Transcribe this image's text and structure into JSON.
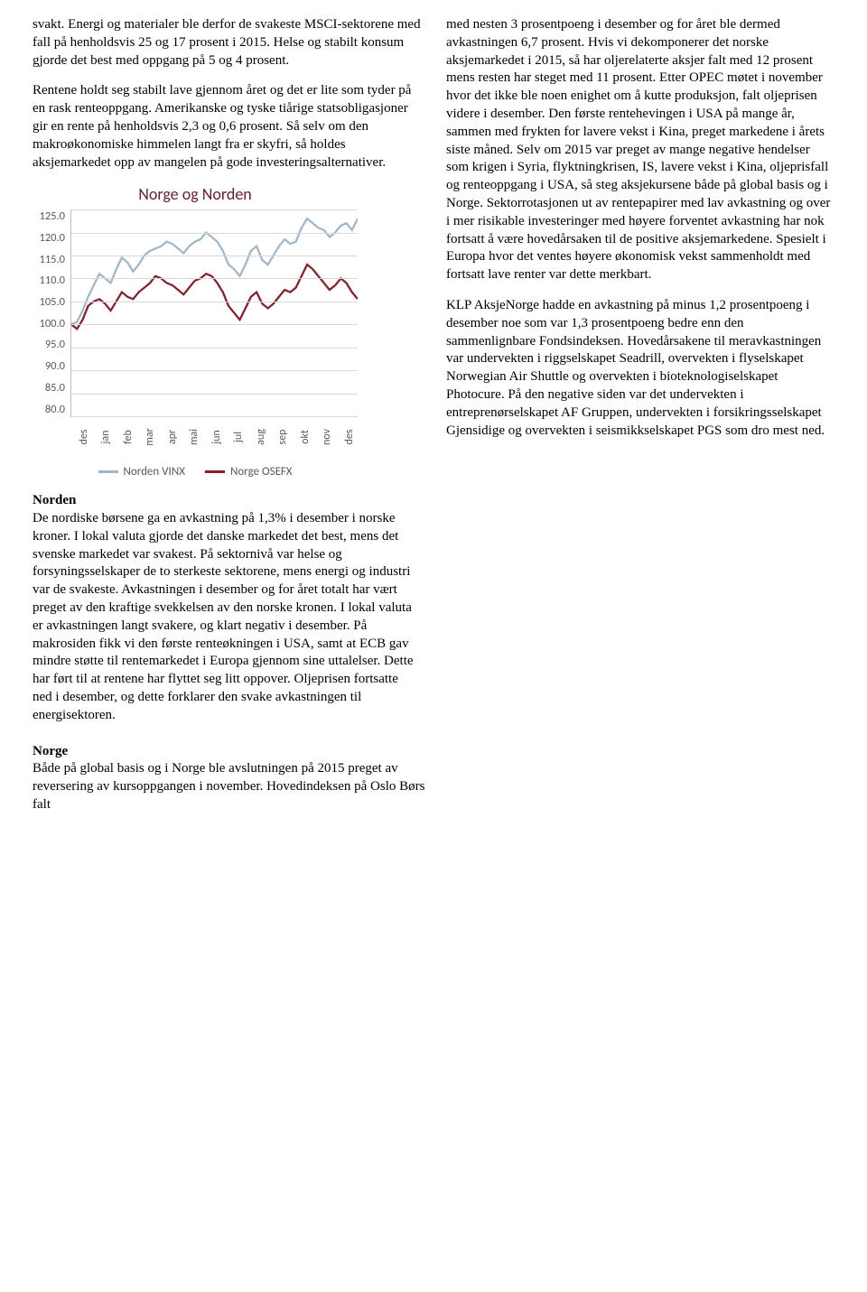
{
  "left": {
    "para1": "svakt. Energi og materialer ble derfor de svakeste MSCI-sektorene med fall på henholdsvis 25 og 17 prosent i 2015. Helse og stabilt konsum gjorde det best med oppgang på 5 og 4 prosent.",
    "para2": "Rentene holdt seg stabilt lave gjennom året og det er lite som tyder på en rask renteoppgang. Amerikanske og tyske tiårige statsobligasjoner gir en rente på henholdsvis 2,3 og 0,6 prosent. Så selv om den makroøkonomiske himmelen langt fra er skyfri, så holdes aksjemarkedet opp av mangelen på gode investeringsalternativer.",
    "norden_title": "Norden",
    "norden_body": "De nordiske børsene ga en avkastning på 1,3% i desember i norske kroner. I lokal valuta gjorde det danske markedet det best, mens det svenske markedet var svakest. På sektornivå var helse og forsyningsselskaper de to sterkeste sektorene, mens energi og industri var de svakeste. Avkastningen i desember og for året totalt har vært preget av den kraftige svekkelsen av den norske kronen. I lokal valuta er avkastningen langt svakere, og klart negativ i desember. På makrosiden fikk vi den første renteøkningen i USA, samt at ECB gav mindre støtte til rentemarkedet i Europa gjennom sine uttalelser. Dette har ført til at rentene har flyttet seg litt oppover. Oljeprisen fortsatte ned i desember, og dette forklarer den svake avkastningen til energisektoren."
  },
  "right": {
    "para1": "med nesten 3 prosentpoeng i desember og for året ble dermed avkastningen 6,7 prosent. Hvis vi dekomponerer det norske aksjemarkedet i 2015, så har oljerelaterte aksjer falt med 12 prosent mens resten har steget med 11 prosent. Etter OPEC møtet i november hvor det ikke ble noen enighet om å kutte produksjon, falt oljeprisen videre i desember. Den første rentehevingen i USA på mange år, sammen med frykten for lavere vekst i Kina, preget markedene i årets siste måned. Selv om 2015 var preget av mange negative hendelser som krigen i Syria, flyktningkrisen, IS, lavere vekst i Kina, oljeprisfall og renteoppgang i USA, så steg aksjekursene både på global basis og i Norge. Sektorrotasjonen ut av rentepapirer med lav avkastning og over i mer risikable investeringer med høyere forventet avkastning har nok fortsatt å være hovedårsaken til de positive aksjemarkedene. Spesielt i Europa hvor det ventes høyere økonomisk vekst sammenholdt med fortsatt lave renter var dette merkbart.",
    "para2": "KLP AksjeNorge hadde en avkastning på minus 1,2 prosentpoeng i desember noe som var 1,3 prosentpoeng bedre enn den sammenlignbare Fondsindeksen. Hovedårsakene til meravkastningen var undervekten i riggselskapet Seadrill, overvekten i flyselskapet Norwegian Air Shuttle og overvekten i bioteknologiselskapet Photocure. På den negative siden var det undervekten i entreprenørselskapet AF Gruppen, undervekten i forsikringsselskapet Gjensidige og overvekten i seismikkselskapet PGS som dro mest ned."
  },
  "bottom": {
    "norge_title": "Norge",
    "norge_body": "Både på global basis og i Norge ble avslutningen på 2015 preget av reversering av kursoppgangen i november. Hovedindeksen på Oslo Børs falt"
  },
  "chart": {
    "title": "Norge og Norden",
    "y_ticks": [
      "125.0",
      "120.0",
      "115.0",
      "110.0",
      "105.0",
      "100.0",
      "95.0",
      "90.0",
      "85.0",
      "80.0"
    ],
    "ymin": 80,
    "ymax": 125,
    "x_labels": [
      "des",
      "jan",
      "feb",
      "mar",
      "apr",
      "mai",
      "jun",
      "jul",
      "aug",
      "sep",
      "okt",
      "nov",
      "des"
    ],
    "series": {
      "norden": {
        "label": "Norden VINX",
        "color": "#9fb8c9",
        "values": [
          100,
          100.5,
          103,
          106,
          108.5,
          111,
          110,
          109,
          112,
          114.5,
          113.5,
          111.5,
          113,
          115,
          116,
          116.5,
          117,
          118,
          117.5,
          116.5,
          115.5,
          117,
          118,
          118.5,
          120,
          119,
          118,
          116,
          113,
          112,
          110.5,
          113,
          116,
          117,
          114,
          113,
          115,
          117,
          118.5,
          117.5,
          118,
          121,
          123,
          122,
          121,
          120.5,
          119,
          120,
          121.5,
          122,
          120.5,
          123
        ]
      },
      "norge": {
        "label": "Norge OSEFX",
        "color": "#8a1f2c",
        "values": [
          100,
          99,
          101,
          104,
          105,
          105.5,
          104.5,
          103,
          105,
          107,
          106,
          105.5,
          107,
          108,
          109,
          110.5,
          110,
          109,
          108.5,
          107.5,
          106.5,
          108,
          109.5,
          110,
          111,
          110.5,
          109,
          107,
          104,
          102.5,
          101,
          103.5,
          106,
          107,
          104.5,
          103.5,
          104.5,
          106,
          107.5,
          107,
          108,
          110.5,
          113,
          112,
          110.5,
          109,
          107.5,
          108.5,
          110,
          109,
          107,
          105.5
        ]
      }
    },
    "legend": [
      {
        "label": "Norden VINX",
        "color": "#9fb8c9"
      },
      {
        "label": "Norge OSEFX",
        "color": "#8a1f2c"
      }
    ]
  }
}
